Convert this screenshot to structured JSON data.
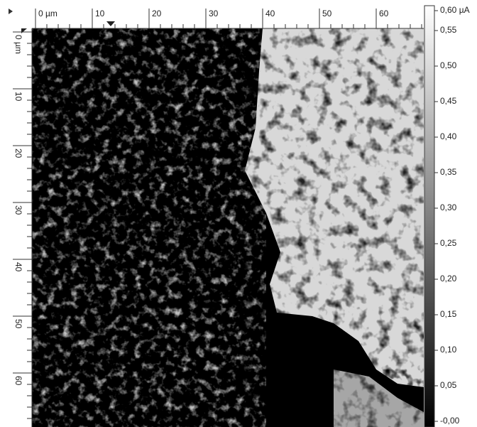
{
  "x_ruler": {
    "labels": [
      "0 µm",
      "10",
      "20",
      "30",
      "40",
      "50",
      "60"
    ]
  },
  "y_ruler": {
    "labels": [
      "0 µm",
      "10",
      "20",
      "30",
      "40",
      "50",
      "60"
    ]
  },
  "colorbar": {
    "labels": [
      "0,60 µA",
      "0,55",
      "0,50",
      "0,45",
      "0,40",
      "0,35",
      "0,30",
      "0,25",
      "0,20",
      "0,15",
      "0,10",
      "0,05",
      "-0,00"
    ]
  }
}
